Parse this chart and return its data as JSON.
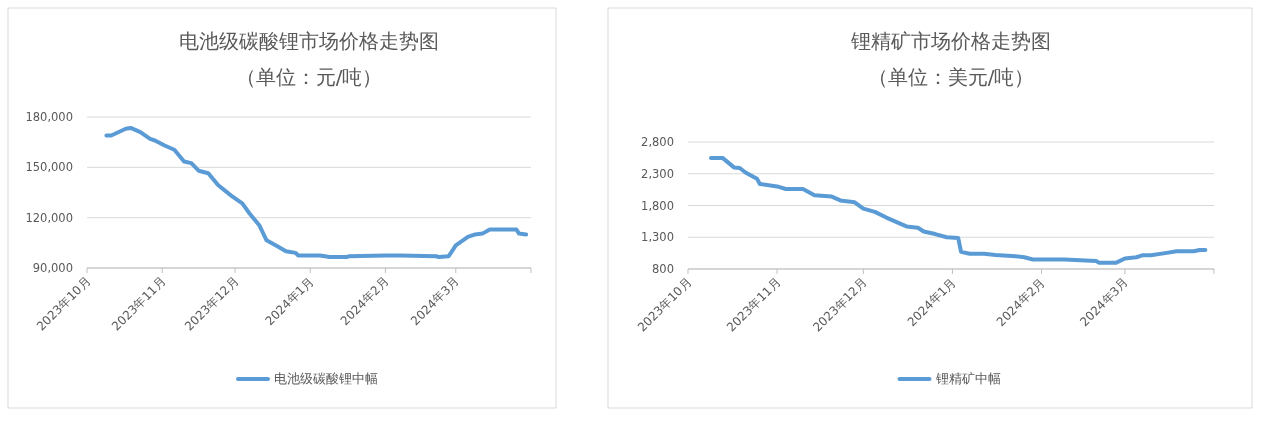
{
  "chart_data": [
    {
      "type": "line",
      "title": "电池级碳酸锂市场价格走势图",
      "subtitle": "（单位：元/吨）",
      "legend": "bottom",
      "grid": "y",
      "xlim": [
        "2023-10-01",
        "2024-04-01"
      ],
      "xticks": [
        {
          "value": "2023-10-01",
          "label": "2023年10月"
        },
        {
          "value": "2023-11-01",
          "label": "2023年11月"
        },
        {
          "value": "2023-12-01",
          "label": "2023年12月"
        },
        {
          "value": "2024-01-01",
          "label": "2024年1月"
        },
        {
          "value": "2024-02-01",
          "label": "2024年2月"
        },
        {
          "value": "2024-03-01",
          "label": "2024年3月"
        }
      ],
      "ylim": [
        90000,
        180000
      ],
      "yticks": [
        {
          "value": 90000,
          "label": "90,000"
        },
        {
          "value": 120000,
          "label": "120,000"
        },
        {
          "value": 150000,
          "label": "150,000"
        },
        {
          "value": 180000,
          "label": "180,000"
        }
      ],
      "series": [
        {
          "name": "电池级碳酸锂中幅",
          "color": "#5b9bd5",
          "x": [
            "2023-10-09",
            "2023-10-11",
            "2023-10-17",
            "2023-10-19",
            "2023-10-23",
            "2023-10-27",
            "2023-10-29",
            "2023-11-02",
            "2023-11-06",
            "2023-11-10",
            "2023-11-13",
            "2023-11-16",
            "2023-11-20",
            "2023-11-24",
            "2023-11-27",
            "2023-11-30",
            "2023-12-04",
            "2023-12-07",
            "2023-12-11",
            "2023-12-14",
            "2023-12-19",
            "2023-12-22",
            "2023-12-26",
            "2023-12-27",
            "2024-01-05",
            "2024-01-09",
            "2024-01-16",
            "2024-01-17",
            "2024-02-01",
            "2024-02-07",
            "2024-02-22",
            "2024-02-23",
            "2024-02-27",
            "2024-02-28",
            "2024-03-01",
            "2024-03-06",
            "2024-03-09",
            "2024-03-12",
            "2024-03-15",
            "2024-03-26",
            "2024-03-27",
            "2024-03-30"
          ],
          "values": [
            169000,
            169000,
            173000,
            173500,
            171000,
            167000,
            166000,
            163000,
            160500,
            153500,
            152500,
            148000,
            146500,
            139500,
            136000,
            132500,
            128500,
            122500,
            115500,
            106500,
            102500,
            100000,
            99000,
            97500,
            97500,
            96500,
            96500,
            97000,
            97500,
            97500,
            97000,
            96500,
            97000,
            99000,
            103500,
            108500,
            110000,
            110500,
            113000,
            113000,
            110500,
            110000
          ]
        }
      ]
    },
    {
      "type": "line",
      "title": "锂精矿市场价格走势图",
      "subtitle": "（单位：美元/吨）",
      "legend": "bottom",
      "grid": "y",
      "xlim": [
        "2023-10-01",
        "2024-04-01"
      ],
      "xticks": [
        {
          "value": "2023-10-01",
          "label": "2023年10月"
        },
        {
          "value": "2023-11-01",
          "label": "2023年11月"
        },
        {
          "value": "2023-12-01",
          "label": "2023年12月"
        },
        {
          "value": "2024-01-01",
          "label": "2024年1月"
        },
        {
          "value": "2024-02-01",
          "label": "2024年2月"
        },
        {
          "value": "2024-03-01",
          "label": "2024年3月"
        }
      ],
      "ylim": [
        800,
        2800
      ],
      "yticks": [
        800,
        {
          "value": 1300,
          "label": "1,300"
        },
        {
          "value": 1800,
          "label": "1,800"
        },
        {
          "value": 2300,
          "label": "2,300"
        },
        {
          "value": 2800,
          "label": "2,800"
        }
      ],
      "series": [
        {
          "name": "锂精矿中幅",
          "color": "#5b9bd5",
          "x": [
            "2023-10-09",
            "2023-10-13",
            "2023-10-17",
            "2023-10-19",
            "2023-10-21",
            "2023-10-25",
            "2023-10-26",
            "2023-11-01",
            "2023-11-04",
            "2023-11-10",
            "2023-11-14",
            "2023-11-20",
            "2023-11-23",
            "2023-11-28",
            "2023-12-01",
            "2023-12-05",
            "2023-12-09",
            "2023-12-13",
            "2023-12-16",
            "2023-12-20",
            "2023-12-22",
            "2023-12-26",
            "2023-12-30",
            "2024-01-03",
            "2024-01-04",
            "2024-01-07",
            "2024-01-12",
            "2024-01-16",
            "2024-01-23",
            "2024-01-26",
            "2024-01-29",
            "2024-02-09",
            "2024-02-20",
            "2024-02-21",
            "2024-02-27",
            "2024-03-01",
            "2024-03-05",
            "2024-03-07",
            "2024-03-10",
            "2024-03-15",
            "2024-03-19",
            "2024-03-25",
            "2024-03-27",
            "2024-03-29"
          ],
          "values": [
            2550,
            2550,
            2400,
            2390,
            2320,
            2220,
            2140,
            2100,
            2060,
            2060,
            1960,
            1940,
            1880,
            1850,
            1750,
            1700,
            1610,
            1530,
            1470,
            1450,
            1390,
            1350,
            1300,
            1290,
            1070,
            1040,
            1040,
            1020,
            1000,
            985,
            950,
            950,
            925,
            900,
            900,
            965,
            985,
            1015,
            1015,
            1050,
            1080,
            1080,
            1100,
            1100
          ]
        }
      ]
    }
  ]
}
